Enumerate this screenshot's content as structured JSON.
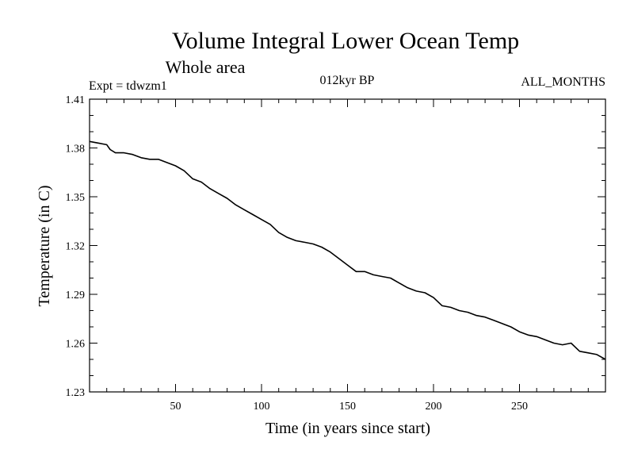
{
  "chart_data": {
    "type": "line",
    "title": "Volume Integral Lower Ocean Temp",
    "subtitle": "Whole area",
    "experiment": "Expt = tdwzm1",
    "period": "012kyr BP",
    "months": "ALL_MONTHS",
    "xlabel": "Time (in years since start)",
    "ylabel": "Temperature (in C)",
    "xlim": [
      0,
      300
    ],
    "ylim": [
      1.23,
      1.41
    ],
    "x_ticks": [
      50,
      100,
      150,
      200,
      250
    ],
    "x_tick_labels": [
      "50",
      "100",
      "150",
      "200",
      "250"
    ],
    "y_ticks": [
      1.23,
      1.26,
      1.29,
      1.32,
      1.35,
      1.38,
      1.41
    ],
    "y_tick_labels": [
      "1.23",
      "1.26",
      "1.29",
      "1.32",
      "1.35",
      "1.38",
      "1.41"
    ],
    "grid": false,
    "series": [
      {
        "name": "Volume Integral Lower Ocean Temp",
        "x": [
          0,
          5,
          10,
          12,
          15,
          20,
          25,
          30,
          35,
          40,
          45,
          50,
          55,
          60,
          65,
          70,
          75,
          80,
          85,
          90,
          95,
          100,
          105,
          110,
          115,
          120,
          125,
          130,
          135,
          140,
          145,
          150,
          155,
          160,
          165,
          170,
          175,
          180,
          185,
          190,
          195,
          200,
          205,
          210,
          215,
          220,
          225,
          230,
          235,
          240,
          245,
          250,
          255,
          260,
          265,
          270,
          275,
          280,
          285,
          290,
          295,
          300
        ],
        "values": [
          1.384,
          1.383,
          1.382,
          1.379,
          1.377,
          1.377,
          1.376,
          1.374,
          1.373,
          1.373,
          1.371,
          1.369,
          1.366,
          1.361,
          1.359,
          1.355,
          1.352,
          1.349,
          1.345,
          1.342,
          1.339,
          1.336,
          1.333,
          1.328,
          1.325,
          1.323,
          1.322,
          1.321,
          1.319,
          1.316,
          1.312,
          1.308,
          1.304,
          1.304,
          1.302,
          1.301,
          1.3,
          1.297,
          1.294,
          1.292,
          1.291,
          1.288,
          1.283,
          1.282,
          1.28,
          1.279,
          1.277,
          1.276,
          1.274,
          1.272,
          1.27,
          1.267,
          1.265,
          1.264,
          1.262,
          1.26,
          1.259,
          1.26,
          1.255,
          1.254,
          1.253,
          1.25
        ]
      }
    ]
  }
}
